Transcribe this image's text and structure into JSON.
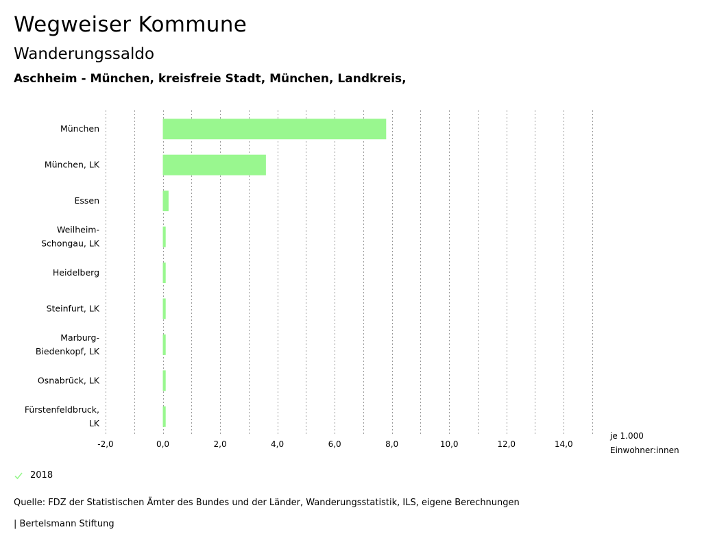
{
  "header": {
    "title": "Wegweiser Kommune",
    "subtitle": "Wanderungssaldo",
    "region": "Aschheim - München, kreisfreie Stadt, München, Landkreis, ..."
  },
  "chart_data": {
    "type": "bar",
    "orientation": "horizontal",
    "categories": [
      [
        "München"
      ],
      [
        "München, LK"
      ],
      [
        "Essen"
      ],
      [
        "Weilheim-",
        "Schongau, LK"
      ],
      [
        "Heidelberg"
      ],
      [
        "Steinfurt, LK"
      ],
      [
        "Marburg-",
        "Biedenkopf, LK"
      ],
      [
        "Osnabrück, LK"
      ],
      [
        "Fürstenfeldbruck,",
        "LK"
      ]
    ],
    "series": [
      {
        "name": "2018",
        "color": "#99f78f",
        "values": [
          7.8,
          3.6,
          0.2,
          0.1,
          0.1,
          0.1,
          0.1,
          0.1,
          0.1
        ]
      }
    ],
    "xlim": [
      -2,
      15
    ],
    "ticks": [
      -2,
      -1,
      0,
      1,
      2,
      3,
      4,
      5,
      6,
      7,
      8,
      9,
      10,
      11,
      12,
      13,
      14,
      15
    ],
    "tick_labels": [
      {
        "value": -2,
        "label": "-2,0"
      },
      {
        "value": 0,
        "label": "0,0"
      },
      {
        "value": 2,
        "label": "2,0"
      },
      {
        "value": 4,
        "label": "4,0"
      },
      {
        "value": 6,
        "label": "6,0"
      },
      {
        "value": 8,
        "label": "8,0"
      },
      {
        "value": 10,
        "label": "10,0"
      },
      {
        "value": 12,
        "label": "12,0"
      },
      {
        "value": 14,
        "label": "14,0"
      }
    ],
    "unit_label": [
      "je 1.000",
      "Einwohner:innen"
    ],
    "grid": true
  },
  "legend": {
    "items": [
      {
        "label": "2018",
        "color": "#99f78f",
        "icon": "check-icon"
      }
    ]
  },
  "footer": {
    "source": "Quelle: FDZ der Statistischen Ämter des Bundes und der Länder, Wanderungsstatistik, ILS, eigene Berechnungen",
    "credit": "| Bertelsmann Stiftung"
  }
}
